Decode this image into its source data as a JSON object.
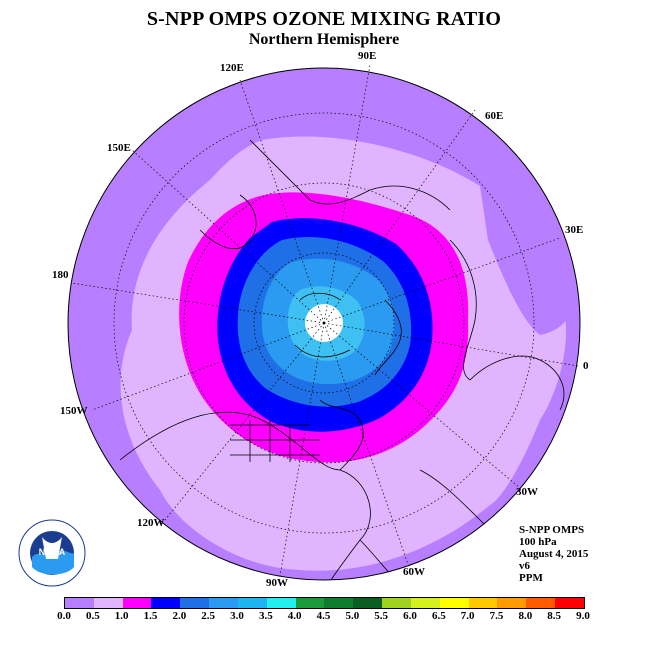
{
  "title": "S-NPP OMPS OZONE MIXING RATIO",
  "subtitle": "Northern Hemisphere",
  "longitude_labels": {
    "e90": "90E",
    "e60": "60E",
    "e30": "30E",
    "e0": "0",
    "w30": "30W",
    "w60": "60W",
    "w90": "90W",
    "w120": "120W",
    "w150": "150W",
    "d180": "180",
    "e150": "150E",
    "e120": "120E"
  },
  "info": {
    "instrument": "S-NPP OMPS",
    "pressure": "100 hPa",
    "date": "August 4, 2015",
    "version": "v6",
    "units": "PPM"
  },
  "colorbar": {
    "ticks": [
      "0.0",
      "0.5",
      "1.0",
      "1.5",
      "2.0",
      "2.5",
      "3.0",
      "3.5",
      "4.0",
      "4.5",
      "5.0",
      "5.5",
      "6.0",
      "6.5",
      "7.0",
      "7.5",
      "8.0",
      "8.5",
      "9.0"
    ],
    "colors": [
      "#b77fff",
      "#e1b4ff",
      "#ff00ff",
      "#0000ff",
      "#1f6fe6",
      "#2a9bf0",
      "#1fb3f0",
      "#22eeee",
      "#1b9a3b",
      "#0f7d2e",
      "#0a5e22",
      "#9fd21f",
      "#d6ef1f",
      "#ffff00",
      "#ffc800",
      "#ff9a00",
      "#ff5a00",
      "#ff0000",
      "#7d5a3c"
    ]
  },
  "logo_text": {
    "agency": "NOAA",
    "ring_top": "NATIONAL OCEANIC AND ATMOSPHERIC ADMINISTRATION",
    "ring_bottom": "U.S. DEPARTMENT OF COMMERCE"
  }
}
